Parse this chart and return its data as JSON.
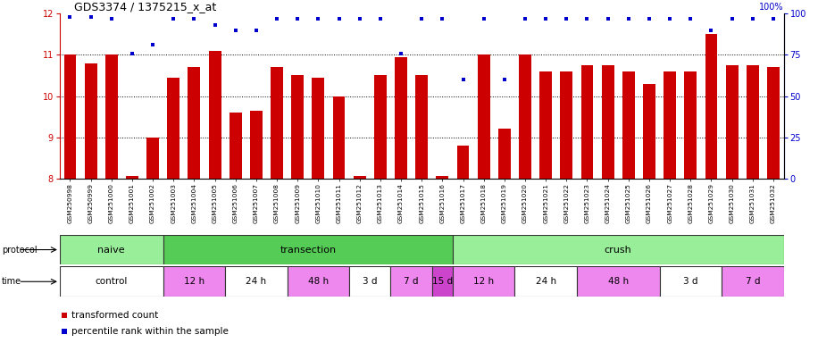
{
  "title": "GDS3374 / 1375215_x_at",
  "samples": [
    "GSM250998",
    "GSM250999",
    "GSM251000",
    "GSM251001",
    "GSM251002",
    "GSM251003",
    "GSM251004",
    "GSM251005",
    "GSM251006",
    "GSM251007",
    "GSM251008",
    "GSM251009",
    "GSM251010",
    "GSM251011",
    "GSM251012",
    "GSM251013",
    "GSM251014",
    "GSM251015",
    "GSM251016",
    "GSM251017",
    "GSM251018",
    "GSM251019",
    "GSM251020",
    "GSM251021",
    "GSM251022",
    "GSM251023",
    "GSM251024",
    "GSM251025",
    "GSM251026",
    "GSM251027",
    "GSM251028",
    "GSM251029",
    "GSM251030",
    "GSM251031",
    "GSM251032"
  ],
  "bar_values": [
    11.0,
    10.8,
    11.0,
    8.05,
    9.0,
    10.45,
    10.7,
    11.1,
    9.6,
    9.65,
    10.7,
    10.5,
    10.45,
    10.0,
    8.05,
    10.5,
    10.95,
    10.5,
    8.05,
    8.8,
    11.0,
    9.2,
    11.0,
    10.6,
    10.6,
    10.75,
    10.75,
    10.6,
    10.3,
    10.6,
    10.6,
    11.5,
    10.75,
    10.75,
    10.7
  ],
  "percentile_values": [
    98,
    98,
    97,
    76,
    81,
    97,
    97,
    93,
    90,
    90,
    97,
    97,
    97,
    97,
    97,
    97,
    76,
    97,
    97,
    60,
    97,
    60,
    97,
    97,
    97,
    97,
    97,
    97,
    97,
    97,
    97,
    90,
    97,
    97,
    97
  ],
  "ylim_left": [
    8,
    12
  ],
  "ylim_right": [
    0,
    100
  ],
  "yticks_left": [
    8,
    9,
    10,
    11,
    12
  ],
  "yticks_right": [
    0,
    25,
    50,
    75,
    100
  ],
  "bar_color": "#cc0000",
  "dot_color": "#0000cc",
  "protocol_groups": [
    {
      "label": "naive",
      "start": 0,
      "end": 5,
      "color": "#99ee99"
    },
    {
      "label": "transection",
      "start": 5,
      "end": 19,
      "color": "#55cc55"
    },
    {
      "label": "crush",
      "start": 19,
      "end": 35,
      "color": "#99ee99"
    }
  ],
  "time_groups": [
    {
      "label": "control",
      "start": 0,
      "end": 5,
      "color": "#ffffff"
    },
    {
      "label": "12 h",
      "start": 5,
      "end": 8,
      "color": "#ee88ee"
    },
    {
      "label": "24 h",
      "start": 8,
      "end": 11,
      "color": "#ffffff"
    },
    {
      "label": "48 h",
      "start": 11,
      "end": 14,
      "color": "#ee88ee"
    },
    {
      "label": "3 d",
      "start": 14,
      "end": 16,
      "color": "#ffffff"
    },
    {
      "label": "7 d",
      "start": 16,
      "end": 18,
      "color": "#ee88ee"
    },
    {
      "label": "15 d",
      "start": 18,
      "end": 19,
      "color": "#cc44cc"
    },
    {
      "label": "12 h",
      "start": 19,
      "end": 22,
      "color": "#ee88ee"
    },
    {
      "label": "24 h",
      "start": 22,
      "end": 25,
      "color": "#ffffff"
    },
    {
      "label": "48 h",
      "start": 25,
      "end": 29,
      "color": "#ee88ee"
    },
    {
      "label": "3 d",
      "start": 29,
      "end": 32,
      "color": "#ffffff"
    },
    {
      "label": "7 d",
      "start": 32,
      "end": 35,
      "color": "#ee88ee"
    }
  ],
  "fig_width": 9.16,
  "fig_height": 3.84,
  "dpi": 100
}
